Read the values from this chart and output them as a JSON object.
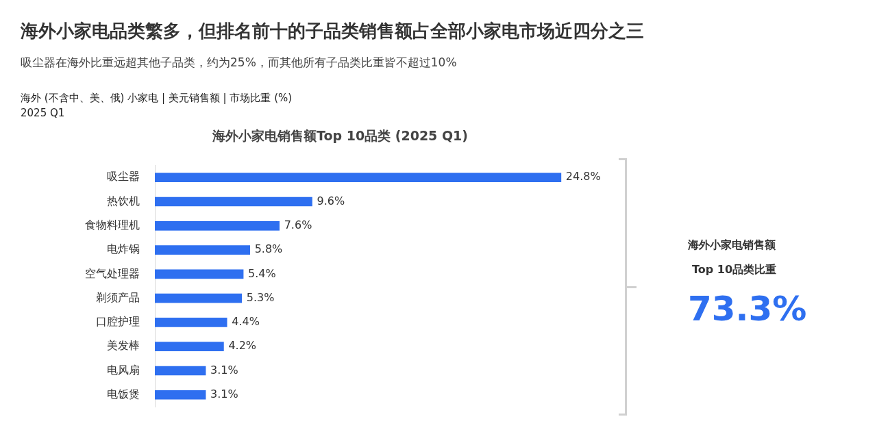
{
  "chart_data": {
    "type": "bar",
    "orientation": "horizontal",
    "title": "海外小家电品类繁多，但排名前十的子品类销售额占全部小家电市场近四分之三",
    "subtitle": "吸尘器在海外比重远超其他子品类，约为25%，而其他所有子品类比重皆不超过10%",
    "categories": [
      "吸尘器",
      "热饮机",
      "食物料理机",
      "电炸锅",
      "空气处理器",
      "剃须产品",
      "口腔护理",
      "美发棒",
      "电风扇",
      "电饭煲"
    ],
    "values": [
      24.8,
      9.6,
      7.6,
      5.8,
      5.4,
      5.3,
      4.4,
      4.2,
      3.1,
      3.1
    ],
    "value_labels": [
      "24.8%",
      "9.6%",
      "7.6%",
      "5.8%",
      "5.4%",
      "5.3%",
      "4.4%",
      "4.2%",
      "3.1%",
      "3.1%"
    ],
    "color": "#2e6ff0",
    "annotations": [
      "海外小家电销售额Top 10品类 (2025 Q1)",
      "海外 (不含中、美、俄) 小家电 | 美元销售额 | 市场比重 (%)",
      "2025 Q1",
      "海外小家电销售额",
      "Top 10品类比重",
      "73.3%"
    ]
  }
}
